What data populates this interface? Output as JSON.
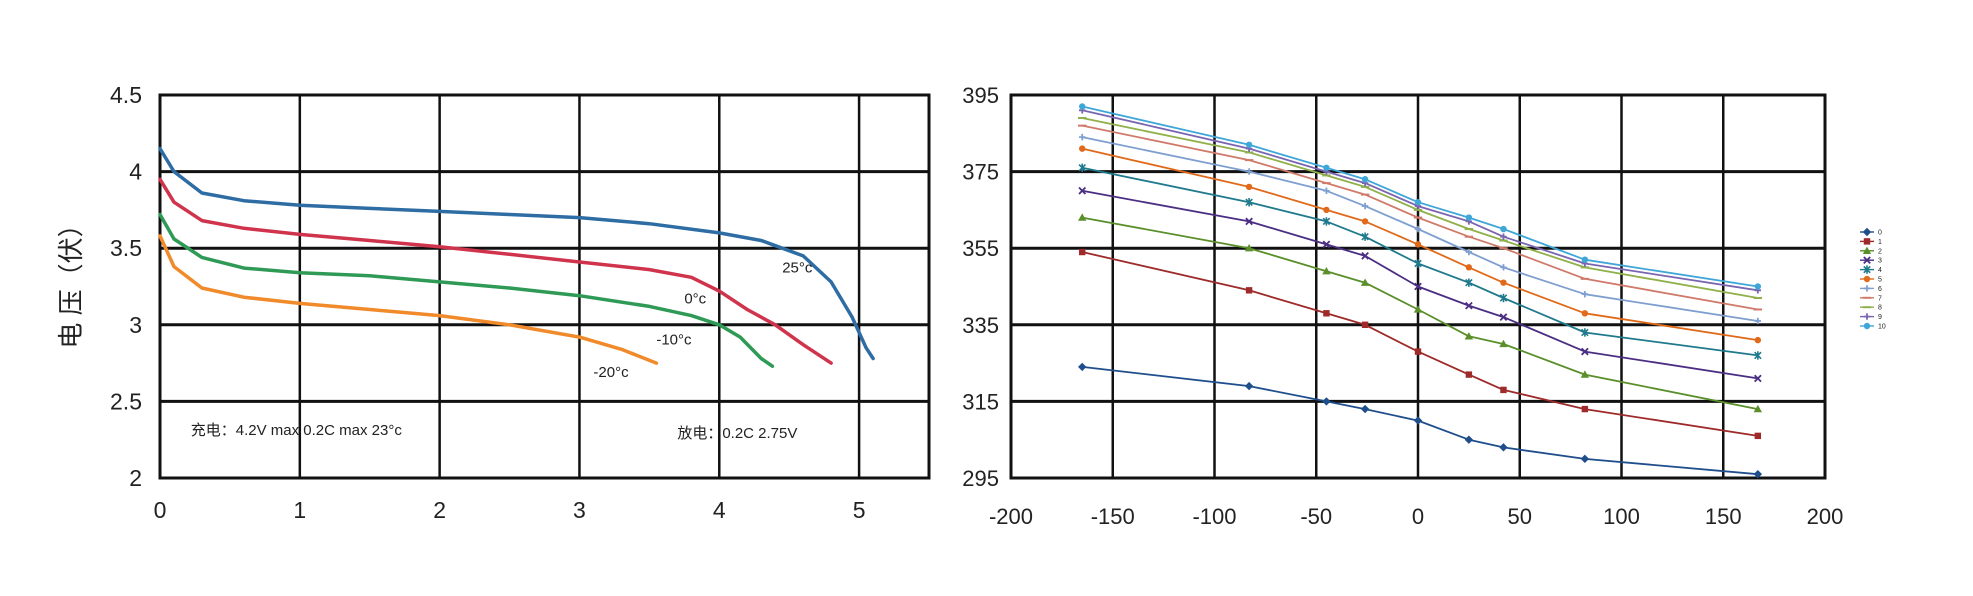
{
  "chart_data": [
    {
      "type": "line",
      "title": "",
      "xlabel": "",
      "ylabel": "电 压（伏）",
      "xlim": [
        0,
        5.5
      ],
      "ylim": [
        2,
        4.5
      ],
      "x_ticks": [
        "0",
        "1",
        "2",
        "3",
        "4",
        "5"
      ],
      "y_ticks": [
        "2",
        "2.5",
        "3",
        "3.5",
        "4",
        "4.5"
      ],
      "grid": true,
      "series": [
        {
          "name": "25°c",
          "color": "#2e6da4",
          "points": [
            [
              0,
              4.15
            ],
            [
              0.1,
              4.0
            ],
            [
              0.3,
              3.86
            ],
            [
              0.6,
              3.81
            ],
            [
              1.0,
              3.78
            ],
            [
              1.5,
              3.76
            ],
            [
              2.0,
              3.74
            ],
            [
              2.5,
              3.72
            ],
            [
              3.0,
              3.7
            ],
            [
              3.5,
              3.66
            ],
            [
              4.0,
              3.6
            ],
            [
              4.3,
              3.55
            ],
            [
              4.6,
              3.45
            ],
            [
              4.8,
              3.28
            ],
            [
              4.95,
              3.05
            ],
            [
              5.05,
              2.85
            ],
            [
              5.1,
              2.78
            ]
          ]
        },
        {
          "name": "0°c",
          "color": "#d0344c",
          "points": [
            [
              0,
              3.95
            ],
            [
              0.1,
              3.8
            ],
            [
              0.3,
              3.68
            ],
            [
              0.6,
              3.63
            ],
            [
              1.0,
              3.59
            ],
            [
              1.5,
              3.55
            ],
            [
              2.0,
              3.51
            ],
            [
              2.5,
              3.46
            ],
            [
              3.0,
              3.41
            ],
            [
              3.5,
              3.36
            ],
            [
              3.8,
              3.31
            ],
            [
              4.0,
              3.22
            ],
            [
              4.2,
              3.1
            ],
            [
              4.4,
              3.0
            ],
            [
              4.6,
              2.87
            ],
            [
              4.8,
              2.75
            ]
          ]
        },
        {
          "name": "-10°c",
          "color": "#2e9a55",
          "points": [
            [
              0,
              3.72
            ],
            [
              0.1,
              3.56
            ],
            [
              0.3,
              3.44
            ],
            [
              0.6,
              3.37
            ],
            [
              1.0,
              3.34
            ],
            [
              1.5,
              3.32
            ],
            [
              2.0,
              3.28
            ],
            [
              2.5,
              3.24
            ],
            [
              3.0,
              3.19
            ],
            [
              3.5,
              3.12
            ],
            [
              3.8,
              3.06
            ],
            [
              4.0,
              3.0
            ],
            [
              4.15,
              2.92
            ],
            [
              4.3,
              2.78
            ],
            [
              4.38,
              2.73
            ]
          ]
        },
        {
          "name": "-20°c",
          "color": "#f08a2a",
          "points": [
            [
              0,
              3.58
            ],
            [
              0.1,
              3.38
            ],
            [
              0.3,
              3.24
            ],
            [
              0.6,
              3.18
            ],
            [
              1.0,
              3.14
            ],
            [
              1.5,
              3.1
            ],
            [
              2.0,
              3.06
            ],
            [
              2.5,
              3.0
            ],
            [
              3.0,
              2.92
            ],
            [
              3.3,
              2.84
            ],
            [
              3.55,
              2.75
            ]
          ]
        }
      ],
      "annotations": [
        {
          "text": "25°c",
          "x": 4.45,
          "y": 3.34
        },
        {
          "text": "0°c",
          "x": 3.75,
          "y": 3.14
        },
        {
          "text": "-10°c",
          "x": 3.55,
          "y": 2.87
        },
        {
          "text": "-20°c",
          "x": 3.1,
          "y": 2.66
        },
        {
          "text": "充电：4.2V max 0.2C max 23°c",
          "x": 0.22,
          "y": 2.28
        },
        {
          "text": "放电：0.2C  2.75V",
          "x": 3.7,
          "y": 2.26
        }
      ]
    },
    {
      "type": "line",
      "title": "",
      "xlabel": "",
      "ylabel": "",
      "xlim": [
        -200,
        200
      ],
      "ylim": [
        295,
        395
      ],
      "x_ticks": [
        "-200",
        "-150",
        "-100",
        "-50",
        "0",
        "50",
        "100",
        "150",
        "200"
      ],
      "y_ticks": [
        "295",
        "315",
        "335",
        "355",
        "375",
        "395"
      ],
      "grid": true,
      "legend": "right",
      "x": [
        -165,
        -83,
        -45,
        -26,
        0,
        25,
        42,
        82,
        167
      ],
      "series": [
        {
          "name": "0",
          "color": "#1f4e8c",
          "marker": "diamond",
          "values": [
            324,
            319,
            315,
            313,
            310,
            305,
            303,
            300,
            296
          ]
        },
        {
          "name": "1",
          "color": "#9e2a2a",
          "marker": "square",
          "values": [
            354,
            344,
            338,
            335,
            328,
            322,
            318,
            313,
            306
          ]
        },
        {
          "name": "2",
          "color": "#5a8f2a",
          "marker": "triangle",
          "values": [
            363,
            355,
            349,
            346,
            339,
            332,
            330,
            322,
            313
          ]
        },
        {
          "name": "3",
          "color": "#4b2e83",
          "marker": "x",
          "values": [
            370,
            362,
            356,
            353,
            345,
            340,
            337,
            328,
            321
          ]
        },
        {
          "name": "4",
          "color": "#1e7a8c",
          "marker": "star",
          "values": [
            376,
            367,
            362,
            358,
            351,
            346,
            342,
            333,
            327
          ]
        },
        {
          "name": "5",
          "color": "#e06a1a",
          "marker": "circle",
          "values": [
            381,
            371,
            365,
            362,
            356,
            350,
            346,
            338,
            331
          ]
        },
        {
          "name": "6",
          "color": "#7f9fd0",
          "marker": "plus",
          "values": [
            384,
            375,
            370,
            366,
            360,
            354,
            350,
            343,
            336
          ]
        },
        {
          "name": "7",
          "color": "#d07a6a",
          "marker": "dash",
          "values": [
            387,
            378,
            372,
            369,
            363,
            358,
            355,
            347,
            339
          ]
        },
        {
          "name": "8",
          "color": "#8fb04a",
          "marker": "dash",
          "values": [
            389,
            380,
            374,
            371,
            365,
            360,
            357,
            350,
            342
          ]
        },
        {
          "name": "9",
          "color": "#7a65b0",
          "marker": "plus",
          "values": [
            391,
            381,
            375,
            372,
            366,
            362,
            358,
            351,
            344
          ]
        },
        {
          "name": "10",
          "color": "#3fa6d8",
          "marker": "circle",
          "values": [
            392,
            382,
            376,
            373,
            367,
            363,
            360,
            352,
            345
          ]
        }
      ]
    }
  ]
}
